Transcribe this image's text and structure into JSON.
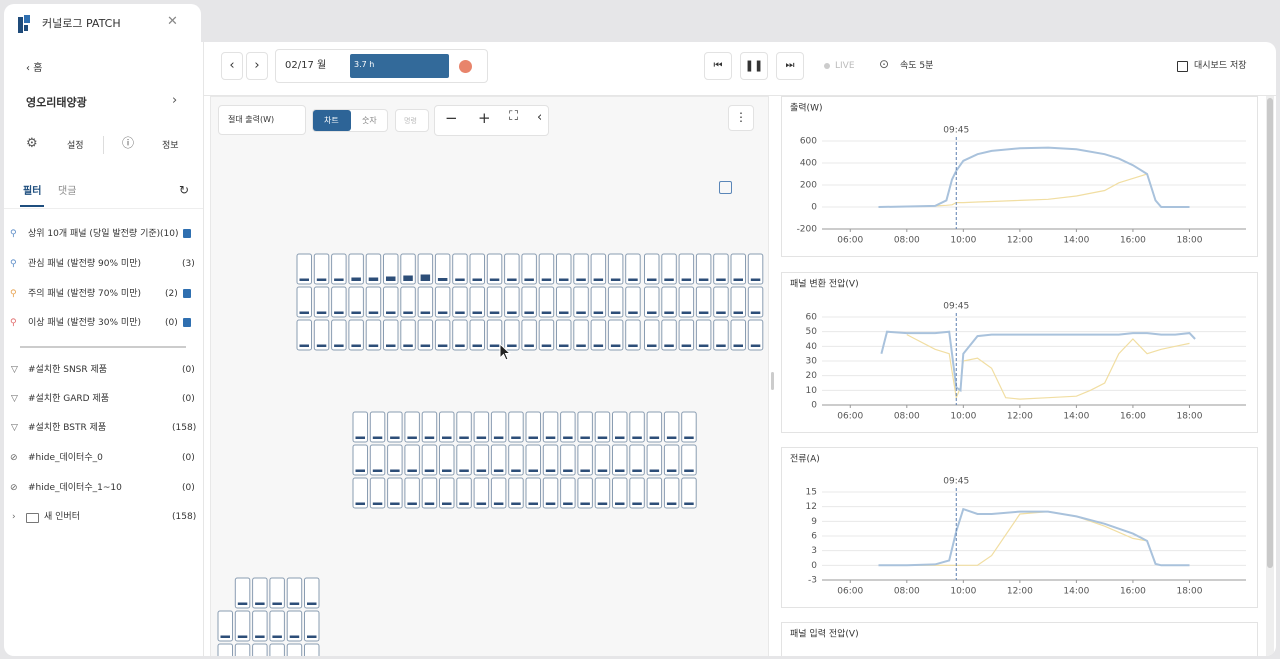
{
  "tab": {
    "title": "커널로그 PATCH"
  },
  "sidebar": {
    "back": "홈",
    "site": "영오리태양광",
    "settings": "설정",
    "info": "정보",
    "tabs": [
      "필터",
      "댓글"
    ],
    "filters": [
      {
        "label": "상위 10개 패널 (당일 발전량 기준)",
        "count": "(10)"
      },
      {
        "label": "관심 패널 (발전량 90% 미만)",
        "count": "(3)"
      },
      {
        "label": "주의 패널 (발전량 70% 미만)",
        "count": "(2)"
      },
      {
        "label": "이상 패널 (발전량 30% 미만)",
        "count": "(0)"
      }
    ],
    "tags": [
      {
        "label": "#설치한 SNSR 제품",
        "count": "(0)"
      },
      {
        "label": "#설치한 GARD 제품",
        "count": "(0)"
      },
      {
        "label": "#설치한 BSTR 제품",
        "count": "(158)"
      },
      {
        "label": "#hide_데이터수_0",
        "count": "(0)"
      },
      {
        "label": "#hide_데이터수_1~10",
        "count": "(0)"
      }
    ],
    "folder": {
      "label": "새 인버터",
      "count": "(158)"
    }
  },
  "toolbar": {
    "date": "02/17 월",
    "duration": "3.7 h",
    "live": "LIVE",
    "speed": "속도 5분",
    "save": "대시보드 저장"
  },
  "canvas": {
    "metric": "절대 출력(W)",
    "modes": [
      "차트",
      "숫자"
    ],
    "command": "명령"
  },
  "chart_data": [
    {
      "type": "line",
      "title": "출력(W)",
      "annotations": [
        {
          "x": 9.75,
          "label": "09:45"
        }
      ],
      "x": [
        7,
        8,
        9,
        9.4,
        9.6,
        9.75,
        10,
        10.5,
        11,
        12,
        13,
        14,
        15,
        15.5,
        16,
        16.5,
        16.8,
        17,
        18
      ],
      "series": [
        {
          "color": "#a9c2dc",
          "values": [
            0,
            5,
            10,
            60,
            250,
            330,
            420,
            480,
            510,
            535,
            540,
            525,
            480,
            440,
            380,
            300,
            60,
            0,
            0
          ]
        },
        {
          "color": "#f1dea2",
          "values": [
            0,
            5,
            10,
            15,
            20,
            40,
            40,
            45,
            50,
            60,
            70,
            100,
            150,
            220,
            260,
            300,
            60,
            0,
            0
          ]
        }
      ],
      "xlim": [
        5,
        20
      ],
      "xticks": [
        {
          "value": 6,
          "label": "06:00"
        },
        {
          "value": 8,
          "label": "08:00"
        },
        {
          "value": 10,
          "label": "10:00"
        },
        {
          "value": 12,
          "label": "12:00"
        },
        {
          "value": 14,
          "label": "14:00"
        },
        {
          "value": 16,
          "label": "16:00"
        },
        {
          "value": 18,
          "label": "18:00"
        }
      ],
      "ylim": [
        -200,
        600
      ],
      "yticks": [
        -200,
        0,
        200,
        400,
        600
      ],
      "grid": true
    },
    {
      "type": "line",
      "title": "패널 변환 전압(V)",
      "annotations": [
        {
          "x": 9.75,
          "label": "09:45"
        }
      ],
      "x": [
        7.1,
        7.3,
        8,
        9,
        9.5,
        9.75,
        9.9,
        10,
        10.5,
        11,
        11.5,
        12,
        13,
        14,
        14.5,
        15,
        15.5,
        16,
        16.5,
        17,
        17.5,
        18,
        18.2
      ],
      "series": [
        {
          "color": "#a9c2dc",
          "values": [
            35,
            50,
            49,
            49,
            50,
            12,
            10,
            35,
            47,
            48,
            48,
            48,
            48,
            48,
            48,
            48,
            48,
            49,
            49,
            48,
            48,
            49,
            45
          ]
        },
        {
          "color": "#f1dea2",
          "values": [
            null,
            null,
            48,
            38,
            35,
            5,
            12,
            30,
            32,
            25,
            5,
            4,
            5,
            6,
            10,
            15,
            35,
            45,
            35,
            38,
            40,
            42,
            null
          ]
        }
      ],
      "xlim": [
        5,
        20
      ],
      "xticks": [
        {
          "value": 6,
          "label": "06:00"
        },
        {
          "value": 8,
          "label": "08:00"
        },
        {
          "value": 10,
          "label": "10:00"
        },
        {
          "value": 12,
          "label": "12:00"
        },
        {
          "value": 14,
          "label": "14:00"
        },
        {
          "value": 16,
          "label": "16:00"
        },
        {
          "value": 18,
          "label": "18:00"
        }
      ],
      "ylim": [
        0,
        60
      ],
      "yticks": [
        0,
        10,
        20,
        30,
        40,
        50,
        60
      ],
      "grid": true
    },
    {
      "type": "line",
      "title": "전류(A)",
      "annotations": [
        {
          "x": 9.75,
          "label": "09:45"
        }
      ],
      "x": [
        7,
        8,
        9,
        9.5,
        9.75,
        10,
        10.5,
        11,
        12,
        13,
        14,
        15,
        16,
        16.5,
        16.8,
        17,
        18
      ],
      "series": [
        {
          "color": "#a9c2dc",
          "values": [
            0,
            0,
            0.2,
            1,
            7,
            11.5,
            10.5,
            10.5,
            11,
            11,
            10,
            8.5,
            6.5,
            5,
            0.3,
            0,
            0
          ]
        },
        {
          "color": "#f1dea2",
          "values": [
            0,
            0,
            0,
            0,
            0,
            0,
            0,
            2,
            10.5,
            11,
            10,
            8,
            5.5,
            5,
            0.3,
            0,
            0
          ]
        }
      ],
      "xlim": [
        5,
        20
      ],
      "xticks": [
        {
          "value": 6,
          "label": "06:00"
        },
        {
          "value": 8,
          "label": "08:00"
        },
        {
          "value": 10,
          "label": "10:00"
        },
        {
          "value": 12,
          "label": "12:00"
        },
        {
          "value": 14,
          "label": "14:00"
        },
        {
          "value": 16,
          "label": "16:00"
        },
        {
          "value": 18,
          "label": "18:00"
        }
      ],
      "ylim": [
        -3,
        15
      ],
      "yticks": [
        -3,
        0,
        3,
        6,
        9,
        12,
        15
      ],
      "grid": true
    },
    {
      "type": "line",
      "title": "패널 입력 전압(V)"
    }
  ]
}
